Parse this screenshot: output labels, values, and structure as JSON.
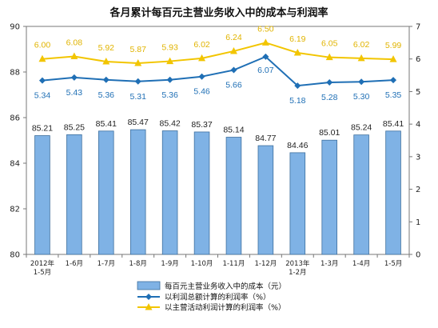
{
  "chart_data": {
    "type": "bar",
    "title": "各月累计每百元主营业务收入中的成本与利润率",
    "categories": [
      "2012年\n1-5月",
      "1-6月",
      "1-7月",
      "1-8月",
      "1-9月",
      "1-10月",
      "1-11月",
      "1-12月",
      "2013年\n1-2月",
      "1-3月",
      "1-4月",
      "1-5月"
    ],
    "y_left": {
      "ylim": [
        80,
        90
      ],
      "ticks": [
        80,
        82,
        84,
        86,
        88,
        90
      ]
    },
    "y_right": {
      "ylim": [
        0,
        7
      ],
      "ticks": [
        0,
        1,
        2,
        3,
        4,
        5,
        6,
        7
      ]
    },
    "grid": false,
    "legend_position": "bottom",
    "series": [
      {
        "name": "每百元主营业务收入中的成本（元）",
        "type": "bar",
        "axis": "left",
        "color": "#7fb2e5",
        "values": [
          85.21,
          85.25,
          85.41,
          85.47,
          85.42,
          85.37,
          85.14,
          84.77,
          84.46,
          85.01,
          85.24,
          85.41
        ]
      },
      {
        "name": "以利润总额计算的利润率（%）",
        "type": "line",
        "axis": "right",
        "color": "#1f6fb5",
        "marker": "diamond",
        "values": [
          5.34,
          5.43,
          5.36,
          5.31,
          5.36,
          5.46,
          5.66,
          6.07,
          5.18,
          5.28,
          5.3,
          5.35
        ]
      },
      {
        "name": "以主营活动利润计算的利润率（%）",
        "type": "line",
        "axis": "right",
        "color": "#f2c500",
        "marker": "triangle",
        "values": [
          6.0,
          6.08,
          5.92,
          5.87,
          5.93,
          6.02,
          6.24,
          6.5,
          6.19,
          6.05,
          6.02,
          5.99
        ]
      }
    ]
  }
}
